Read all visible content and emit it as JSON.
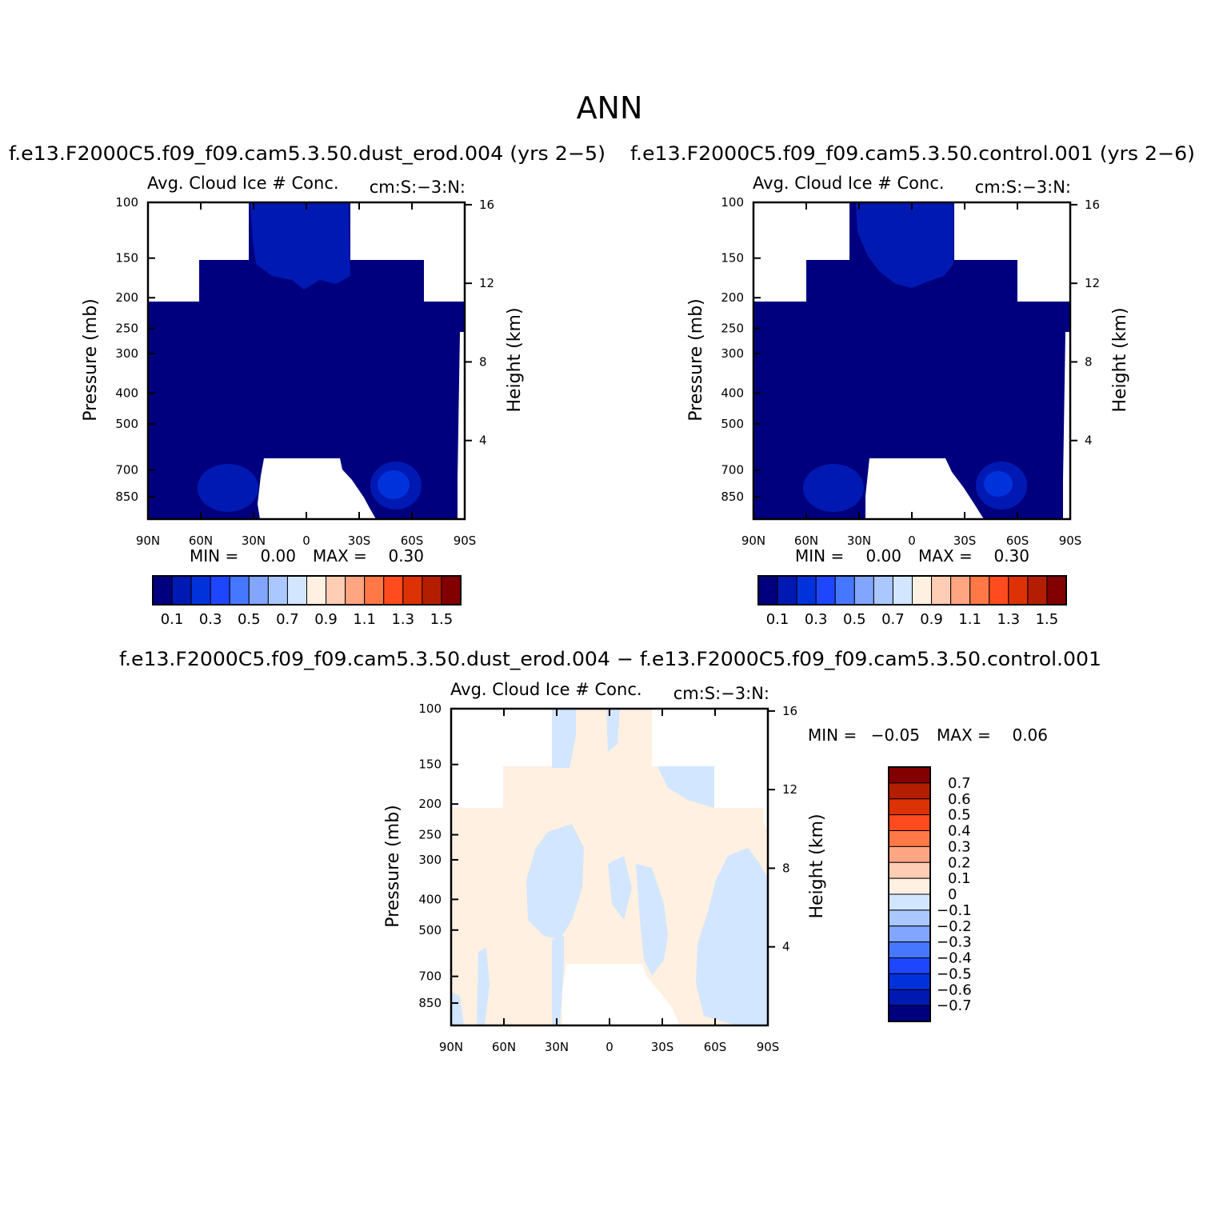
{
  "page": {
    "title": "ANN"
  },
  "chart_data": [
    {
      "type": "heatmap",
      "title": "f.e13.F2000C5.f09_f09.cam5.3.50.dust_erod.004 (yrs 2-5)",
      "subtitle_left": "Avg. Cloud Ice # Conc.",
      "subtitle_right": "cm:S:-3:N:",
      "ylabel": "Pressure (mb)",
      "ylabel_right": "Height (km)",
      "x_ticks": [
        "90N",
        "60N",
        "30N",
        "0",
        "30S",
        "60S",
        "90S"
      ],
      "y_ticks": [
        "100",
        "150",
        "200",
        "250",
        "300",
        "400",
        "500",
        "700",
        "850"
      ],
      "y_ticks_right": [
        "16",
        "12",
        "8",
        "4"
      ],
      "stats": {
        "min_label": "MIN =",
        "min": "0.00",
        "max_label": "MAX =",
        "max": "0.30"
      },
      "colorbar": {
        "orientation": "horizontal",
        "labels": [
          "0.1",
          "0.3",
          "0.5",
          "0.7",
          "0.9",
          "1.1",
          "1.3",
          "1.5"
        ],
        "colors": [
          "#00007f",
          "#0019b2",
          "#0032dc",
          "#1e46ff",
          "#4678ff",
          "#82a5ff",
          "#aac8ff",
          "#d2e6ff",
          "#fff0e1",
          "#ffcdb4",
          "#ffa582",
          "#ff7846",
          "#ff4b1e",
          "#dc3205",
          "#b41e00",
          "#820000"
        ]
      }
    },
    {
      "type": "heatmap",
      "title": "f.e13.F2000C5.f09_f09.cam5.3.50.control.001 (yrs 2-6)",
      "subtitle_left": "Avg. Cloud Ice # Conc.",
      "subtitle_right": "cm:S:-3:N:",
      "ylabel": "Pressure (mb)",
      "ylabel_right": "Height (km)",
      "x_ticks": [
        "90N",
        "60N",
        "30N",
        "0",
        "30S",
        "60S",
        "90S"
      ],
      "y_ticks": [
        "100",
        "150",
        "200",
        "250",
        "300",
        "400",
        "500",
        "700",
        "850"
      ],
      "y_ticks_right": [
        "16",
        "12",
        "8",
        "4"
      ],
      "stats": {
        "min_label": "MIN =",
        "min": "0.00",
        "max_label": "MAX =",
        "max": "0.30"
      },
      "colorbar": {
        "orientation": "horizontal",
        "labels": [
          "0.1",
          "0.3",
          "0.5",
          "0.7",
          "0.9",
          "1.1",
          "1.3",
          "1.5"
        ],
        "colors": [
          "#00007f",
          "#0019b2",
          "#0032dc",
          "#1e46ff",
          "#4678ff",
          "#82a5ff",
          "#aac8ff",
          "#d2e6ff",
          "#fff0e1",
          "#ffcdb4",
          "#ffa582",
          "#ff7846",
          "#ff4b1e",
          "#dc3205",
          "#b41e00",
          "#820000"
        ]
      }
    },
    {
      "type": "heatmap",
      "title": "f.e13.F2000C5.f09_f09.cam5.3.50.dust_erod.004 - f.e13.F2000C5.f09_f09.cam5.3.50.control.001",
      "subtitle_left": "Avg. Cloud Ice # Conc.",
      "subtitle_right": "cm:S:-3:N:",
      "ylabel": "Pressure (mb)",
      "ylabel_right": "Height (km)",
      "x_ticks": [
        "90N",
        "60N",
        "30N",
        "0",
        "30S",
        "60S",
        "90S"
      ],
      "y_ticks": [
        "100",
        "150",
        "200",
        "250",
        "300",
        "400",
        "500",
        "700",
        "850"
      ],
      "y_ticks_right": [
        "16",
        "12",
        "8",
        "4"
      ],
      "stats": {
        "min_label": "MIN =",
        "min": "-0.05",
        "max_label": "MAX =",
        "max": "0.06"
      },
      "colorbar": {
        "orientation": "vertical",
        "labels": [
          "0.7",
          "0.6",
          "0.5",
          "0.4",
          "0.3",
          "0.2",
          "0.1",
          "0",
          "-0.1",
          "-0.2",
          "-0.3",
          "-0.4",
          "-0.5",
          "-0.6",
          "-0.7"
        ],
        "colors": [
          "#820000",
          "#b41e00",
          "#dc3205",
          "#ff4b1e",
          "#ff7846",
          "#ffa582",
          "#ffcdb4",
          "#fff0e1",
          "#d2e6ff",
          "#aac8ff",
          "#82a5ff",
          "#4678ff",
          "#1e46ff",
          "#0032dc",
          "#0019b2",
          "#00007f"
        ]
      }
    }
  ]
}
